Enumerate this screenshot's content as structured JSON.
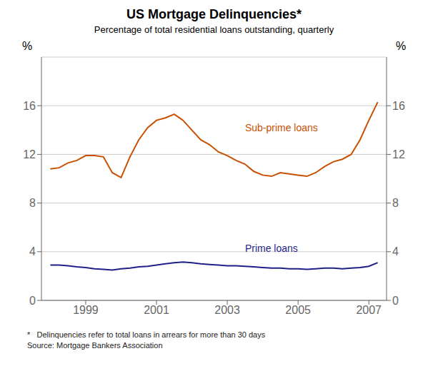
{
  "chart_data": {
    "type": "line",
    "title": "US Mortgage Delinquencies*",
    "subtitle": "Percentage of total residential loans outstanding, quarterly",
    "ylabel": "%",
    "y2label": "%",
    "footnote": "*   Delinquencies refer to total loans in arrears for more than 30 days\nSource: Mortgage Bankers Association",
    "x": [
      1998.0,
      1998.25,
      1998.5,
      1998.75,
      1999.0,
      1999.25,
      1999.5,
      1999.75,
      2000.0,
      2000.25,
      2000.5,
      2000.75,
      2001.0,
      2001.25,
      2001.5,
      2001.75,
      2002.0,
      2002.25,
      2002.5,
      2002.75,
      2003.0,
      2003.25,
      2003.5,
      2003.75,
      2004.0,
      2004.25,
      2004.5,
      2004.75,
      2005.0,
      2005.25,
      2005.5,
      2005.75,
      2006.0,
      2006.25,
      2006.5,
      2006.75,
      2007.0,
      2007.25
    ],
    "series": [
      {
        "name": "Sub-prime loans",
        "color": "#c85000",
        "values": [
          10.8,
          10.9,
          11.3,
          11.5,
          11.9,
          11.9,
          11.8,
          10.5,
          10.1,
          11.8,
          13.2,
          14.2,
          14.8,
          15.0,
          15.3,
          14.8,
          14.0,
          13.2,
          12.8,
          12.2,
          11.9,
          11.5,
          11.2,
          10.6,
          10.3,
          10.2,
          10.5,
          10.4,
          10.3,
          10.2,
          10.5,
          11.0,
          11.4,
          11.6,
          12.0,
          13.2,
          14.8,
          16.3
        ]
      },
      {
        "name": "Prime loans",
        "color": "#1f1f8c",
        "values": [
          2.9,
          2.9,
          2.85,
          2.75,
          2.7,
          2.6,
          2.55,
          2.5,
          2.6,
          2.65,
          2.75,
          2.8,
          2.9,
          3.0,
          3.1,
          3.15,
          3.1,
          3.0,
          2.95,
          2.9,
          2.85,
          2.85,
          2.8,
          2.75,
          2.7,
          2.65,
          2.65,
          2.6,
          2.6,
          2.55,
          2.6,
          2.65,
          2.65,
          2.6,
          2.65,
          2.7,
          2.8,
          3.1
        ]
      }
    ],
    "annotations": [
      {
        "text": "Sub-prime loans",
        "x": 2003.4,
        "y": 14.2,
        "color": "#c85000"
      },
      {
        "text": "Prime loans",
        "x": 2003.4,
        "y": 4.3,
        "color": "#1f1f8c"
      }
    ],
    "xlim": [
      1997.75,
      2007.5
    ],
    "xticks": [
      1999,
      2001,
      2003,
      2005,
      2007
    ],
    "ylim": [
      0,
      20
    ],
    "yticks": [
      0,
      4,
      8,
      12,
      16
    ],
    "y2lim": [
      0,
      20
    ],
    "y2ticks": [
      0,
      4,
      8,
      12,
      16
    ],
    "grid": true
  }
}
